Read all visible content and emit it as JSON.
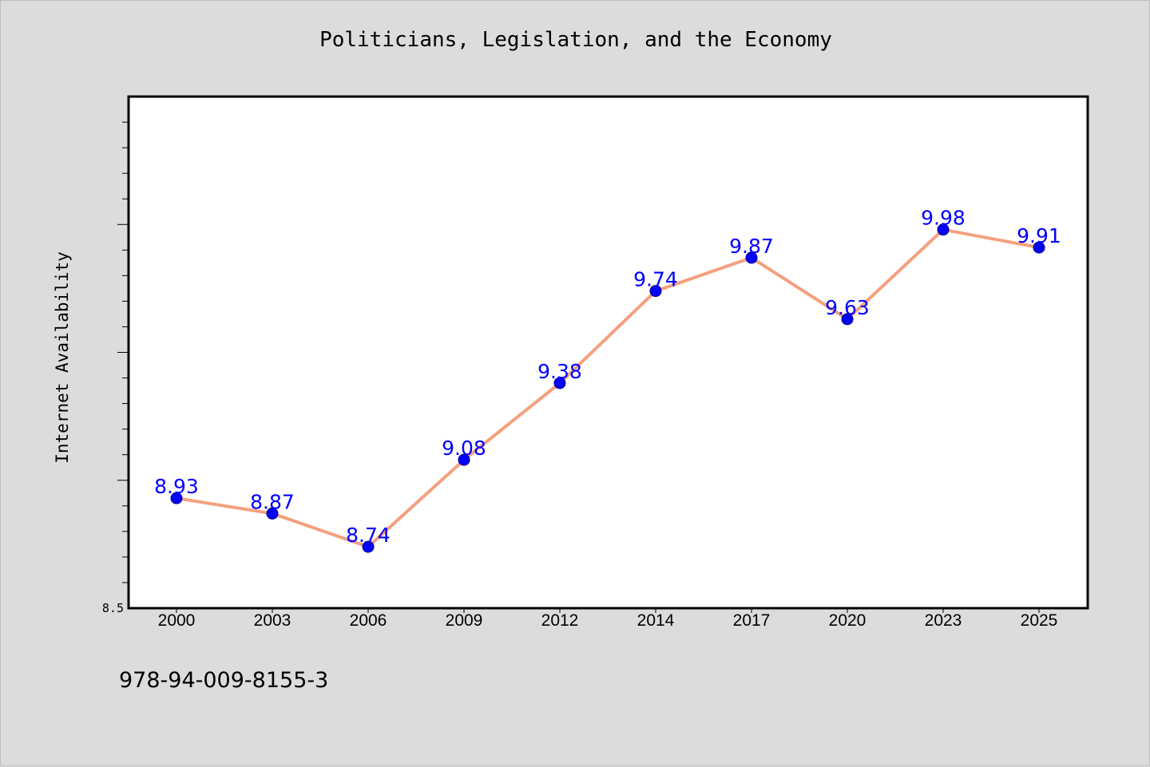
{
  "chart_data": {
    "type": "line",
    "title": "Politicians, Legislation, and the Economy",
    "xlabel": "",
    "ylabel": "Internet Availability",
    "categories": [
      "2000",
      "2003",
      "2006",
      "2009",
      "2012",
      "2014",
      "2017",
      "2020",
      "2023",
      "2025"
    ],
    "series": [
      {
        "values": [
          8.93,
          8.87,
          8.74,
          9.08,
          9.38,
          9.74,
          9.87,
          9.63,
          9.98,
          9.91
        ]
      }
    ],
    "ylim": [
      8.5,
      10.5
    ],
    "y_tick_labels": [
      "8.5"
    ],
    "grid": false,
    "data_labels": true,
    "colors": {
      "line": "#f4a07e",
      "marker": "#0000ff",
      "label": "#0000ff",
      "background": "#dcdcdc",
      "plot": "#ffffff"
    }
  },
  "footer": {
    "isbn": "978-94-009-8155-3"
  }
}
